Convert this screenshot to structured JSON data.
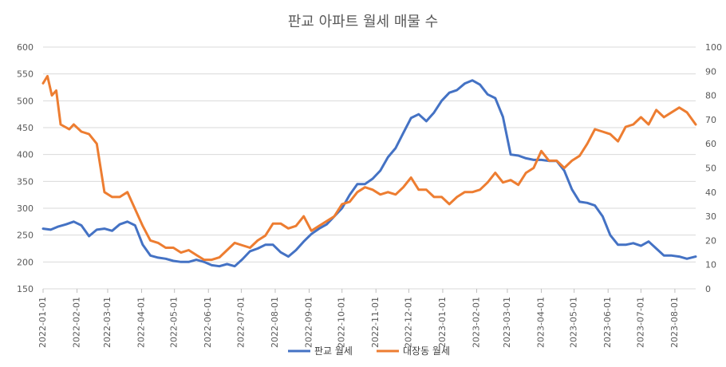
{
  "chart_data": {
    "type": "line",
    "title": "판교 아파트 월세 매물 수",
    "x_tick_labels": [
      "2022-01-01",
      "2022-02-01",
      "2022-03-01",
      "2022-04-01",
      "2022-05-01",
      "2022-06-01",
      "2022-07-01",
      "2022-08-01",
      "2022-09-01",
      "2022-10-01",
      "2022-11-01",
      "2022-12-01",
      "2023-01-01",
      "2023-02-01",
      "2023-03-01",
      "2023-04-01",
      "2023-05-01",
      "2023-06-01",
      "2023-07-01",
      "2023-08-01"
    ],
    "x_range": [
      "2022-01-01",
      "2023-08-20"
    ],
    "y_left": {
      "min": 150,
      "max": 600,
      "ticks": [
        150,
        200,
        250,
        300,
        350,
        400,
        450,
        500,
        550,
        600
      ]
    },
    "y_right": {
      "min": 0,
      "max": 100,
      "ticks": [
        0,
        10,
        20,
        30,
        40,
        50,
        60,
        70,
        80,
        90,
        100
      ]
    },
    "grid": "horizontal",
    "legend_position": "bottom",
    "series": [
      {
        "name": "판교 월세",
        "axis": "left",
        "color": "#4472C4",
        "points": [
          [
            "2022-01-01",
            262
          ],
          [
            "2022-01-08",
            260
          ],
          [
            "2022-01-15",
            266
          ],
          [
            "2022-01-22",
            270
          ],
          [
            "2022-01-29",
            275
          ],
          [
            "2022-02-05",
            268
          ],
          [
            "2022-02-12",
            248
          ],
          [
            "2022-02-19",
            260
          ],
          [
            "2022-02-26",
            262
          ],
          [
            "2022-03-05",
            258
          ],
          [
            "2022-03-12",
            270
          ],
          [
            "2022-03-19",
            275
          ],
          [
            "2022-03-26",
            268
          ],
          [
            "2022-04-02",
            232
          ],
          [
            "2022-04-09",
            212
          ],
          [
            "2022-04-16",
            208
          ],
          [
            "2022-04-23",
            206
          ],
          [
            "2022-04-30",
            202
          ],
          [
            "2022-05-07",
            200
          ],
          [
            "2022-05-14",
            200
          ],
          [
            "2022-05-21",
            204
          ],
          [
            "2022-05-28",
            200
          ],
          [
            "2022-06-04",
            194
          ],
          [
            "2022-06-11",
            192
          ],
          [
            "2022-06-18",
            196
          ],
          [
            "2022-06-25",
            192
          ],
          [
            "2022-07-02",
            205
          ],
          [
            "2022-07-09",
            220
          ],
          [
            "2022-07-16",
            225
          ],
          [
            "2022-07-23",
            232
          ],
          [
            "2022-07-30",
            232
          ],
          [
            "2022-08-06",
            218
          ],
          [
            "2022-08-13",
            210
          ],
          [
            "2022-08-20",
            222
          ],
          [
            "2022-08-27",
            238
          ],
          [
            "2022-09-03",
            252
          ],
          [
            "2022-09-10",
            262
          ],
          [
            "2022-09-17",
            270
          ],
          [
            "2022-09-24",
            285
          ],
          [
            "2022-10-01",
            300
          ],
          [
            "2022-10-08",
            325
          ],
          [
            "2022-10-15",
            345
          ],
          [
            "2022-10-22",
            345
          ],
          [
            "2022-10-29",
            355
          ],
          [
            "2022-11-05",
            370
          ],
          [
            "2022-11-12",
            395
          ],
          [
            "2022-11-19",
            412
          ],
          [
            "2022-11-26",
            440
          ],
          [
            "2022-12-03",
            468
          ],
          [
            "2022-12-10",
            475
          ],
          [
            "2022-12-17",
            462
          ],
          [
            "2022-12-24",
            478
          ],
          [
            "2022-12-31",
            500
          ],
          [
            "2023-01-07",
            515
          ],
          [
            "2023-01-14",
            520
          ],
          [
            "2023-01-21",
            532
          ],
          [
            "2023-01-28",
            538
          ],
          [
            "2023-02-04",
            530
          ],
          [
            "2023-02-11",
            512
          ],
          [
            "2023-02-18",
            505
          ],
          [
            "2023-02-25",
            470
          ],
          [
            "2023-03-04",
            400
          ],
          [
            "2023-03-11",
            398
          ],
          [
            "2023-03-18",
            393
          ],
          [
            "2023-03-25",
            390
          ],
          [
            "2023-04-01",
            390
          ],
          [
            "2023-04-08",
            388
          ],
          [
            "2023-04-15",
            388
          ],
          [
            "2023-04-22",
            370
          ],
          [
            "2023-04-29",
            335
          ],
          [
            "2023-05-06",
            312
          ],
          [
            "2023-05-13",
            310
          ],
          [
            "2023-05-20",
            305
          ],
          [
            "2023-05-27",
            285
          ],
          [
            "2023-06-03",
            250
          ],
          [
            "2023-06-10",
            232
          ],
          [
            "2023-06-17",
            232
          ],
          [
            "2023-06-24",
            235
          ],
          [
            "2023-07-01",
            230
          ],
          [
            "2023-07-08",
            238
          ],
          [
            "2023-07-15",
            225
          ],
          [
            "2023-07-22",
            212
          ],
          [
            "2023-07-29",
            212
          ],
          [
            "2023-08-05",
            210
          ],
          [
            "2023-08-12",
            206
          ],
          [
            "2023-08-20",
            210
          ]
        ]
      },
      {
        "name": "대장동 월세",
        "axis": "right",
        "color": "#ED7D31",
        "points": [
          [
            "2022-01-01",
            85
          ],
          [
            "2022-01-05",
            88
          ],
          [
            "2022-01-09",
            80
          ],
          [
            "2022-01-13",
            82
          ],
          [
            "2022-01-17",
            68
          ],
          [
            "2022-01-21",
            67
          ],
          [
            "2022-01-25",
            66
          ],
          [
            "2022-01-29",
            68
          ],
          [
            "2022-02-05",
            65
          ],
          [
            "2022-02-12",
            64
          ],
          [
            "2022-02-19",
            60
          ],
          [
            "2022-02-26",
            40
          ],
          [
            "2022-03-05",
            38
          ],
          [
            "2022-03-12",
            38
          ],
          [
            "2022-03-19",
            40
          ],
          [
            "2022-03-26",
            33
          ],
          [
            "2022-04-02",
            26
          ],
          [
            "2022-04-09",
            20
          ],
          [
            "2022-04-16",
            19
          ],
          [
            "2022-04-23",
            17
          ],
          [
            "2022-04-30",
            17
          ],
          [
            "2022-05-07",
            15
          ],
          [
            "2022-05-14",
            16
          ],
          [
            "2022-05-21",
            14
          ],
          [
            "2022-05-28",
            12
          ],
          [
            "2022-06-04",
            12
          ],
          [
            "2022-06-11",
            13
          ],
          [
            "2022-06-18",
            16
          ],
          [
            "2022-06-25",
            19
          ],
          [
            "2022-07-02",
            18
          ],
          [
            "2022-07-09",
            17
          ],
          [
            "2022-07-16",
            20
          ],
          [
            "2022-07-23",
            22
          ],
          [
            "2022-07-30",
            27
          ],
          [
            "2022-08-06",
            27
          ],
          [
            "2022-08-13",
            25
          ],
          [
            "2022-08-20",
            26
          ],
          [
            "2022-08-27",
            30
          ],
          [
            "2022-09-03",
            24
          ],
          [
            "2022-09-10",
            26
          ],
          [
            "2022-09-17",
            28
          ],
          [
            "2022-09-24",
            30
          ],
          [
            "2022-10-01",
            35
          ],
          [
            "2022-10-08",
            36
          ],
          [
            "2022-10-15",
            40
          ],
          [
            "2022-10-22",
            42
          ],
          [
            "2022-10-29",
            41
          ],
          [
            "2022-11-05",
            39
          ],
          [
            "2022-11-12",
            40
          ],
          [
            "2022-11-19",
            39
          ],
          [
            "2022-11-26",
            42
          ],
          [
            "2022-12-03",
            46
          ],
          [
            "2022-12-10",
            41
          ],
          [
            "2022-12-17",
            41
          ],
          [
            "2022-12-24",
            38
          ],
          [
            "2022-12-31",
            38
          ],
          [
            "2023-01-07",
            35
          ],
          [
            "2023-01-14",
            38
          ],
          [
            "2023-01-21",
            40
          ],
          [
            "2023-01-28",
            40
          ],
          [
            "2023-02-04",
            41
          ],
          [
            "2023-02-11",
            44
          ],
          [
            "2023-02-18",
            48
          ],
          [
            "2023-02-25",
            44
          ],
          [
            "2023-03-04",
            45
          ],
          [
            "2023-03-11",
            43
          ],
          [
            "2023-03-18",
            48
          ],
          [
            "2023-03-25",
            50
          ],
          [
            "2023-04-01",
            57
          ],
          [
            "2023-04-08",
            53
          ],
          [
            "2023-04-15",
            53
          ],
          [
            "2023-04-22",
            50
          ],
          [
            "2023-04-29",
            53
          ],
          [
            "2023-05-06",
            55
          ],
          [
            "2023-05-13",
            60
          ],
          [
            "2023-05-20",
            66
          ],
          [
            "2023-05-27",
            65
          ],
          [
            "2023-06-03",
            64
          ],
          [
            "2023-06-10",
            61
          ],
          [
            "2023-06-17",
            67
          ],
          [
            "2023-06-24",
            68
          ],
          [
            "2023-07-01",
            71
          ],
          [
            "2023-07-08",
            68
          ],
          [
            "2023-07-15",
            74
          ],
          [
            "2023-07-22",
            71
          ],
          [
            "2023-07-29",
            73
          ],
          [
            "2023-08-05",
            75
          ],
          [
            "2023-08-12",
            73
          ],
          [
            "2023-08-20",
            68
          ]
        ]
      }
    ]
  }
}
